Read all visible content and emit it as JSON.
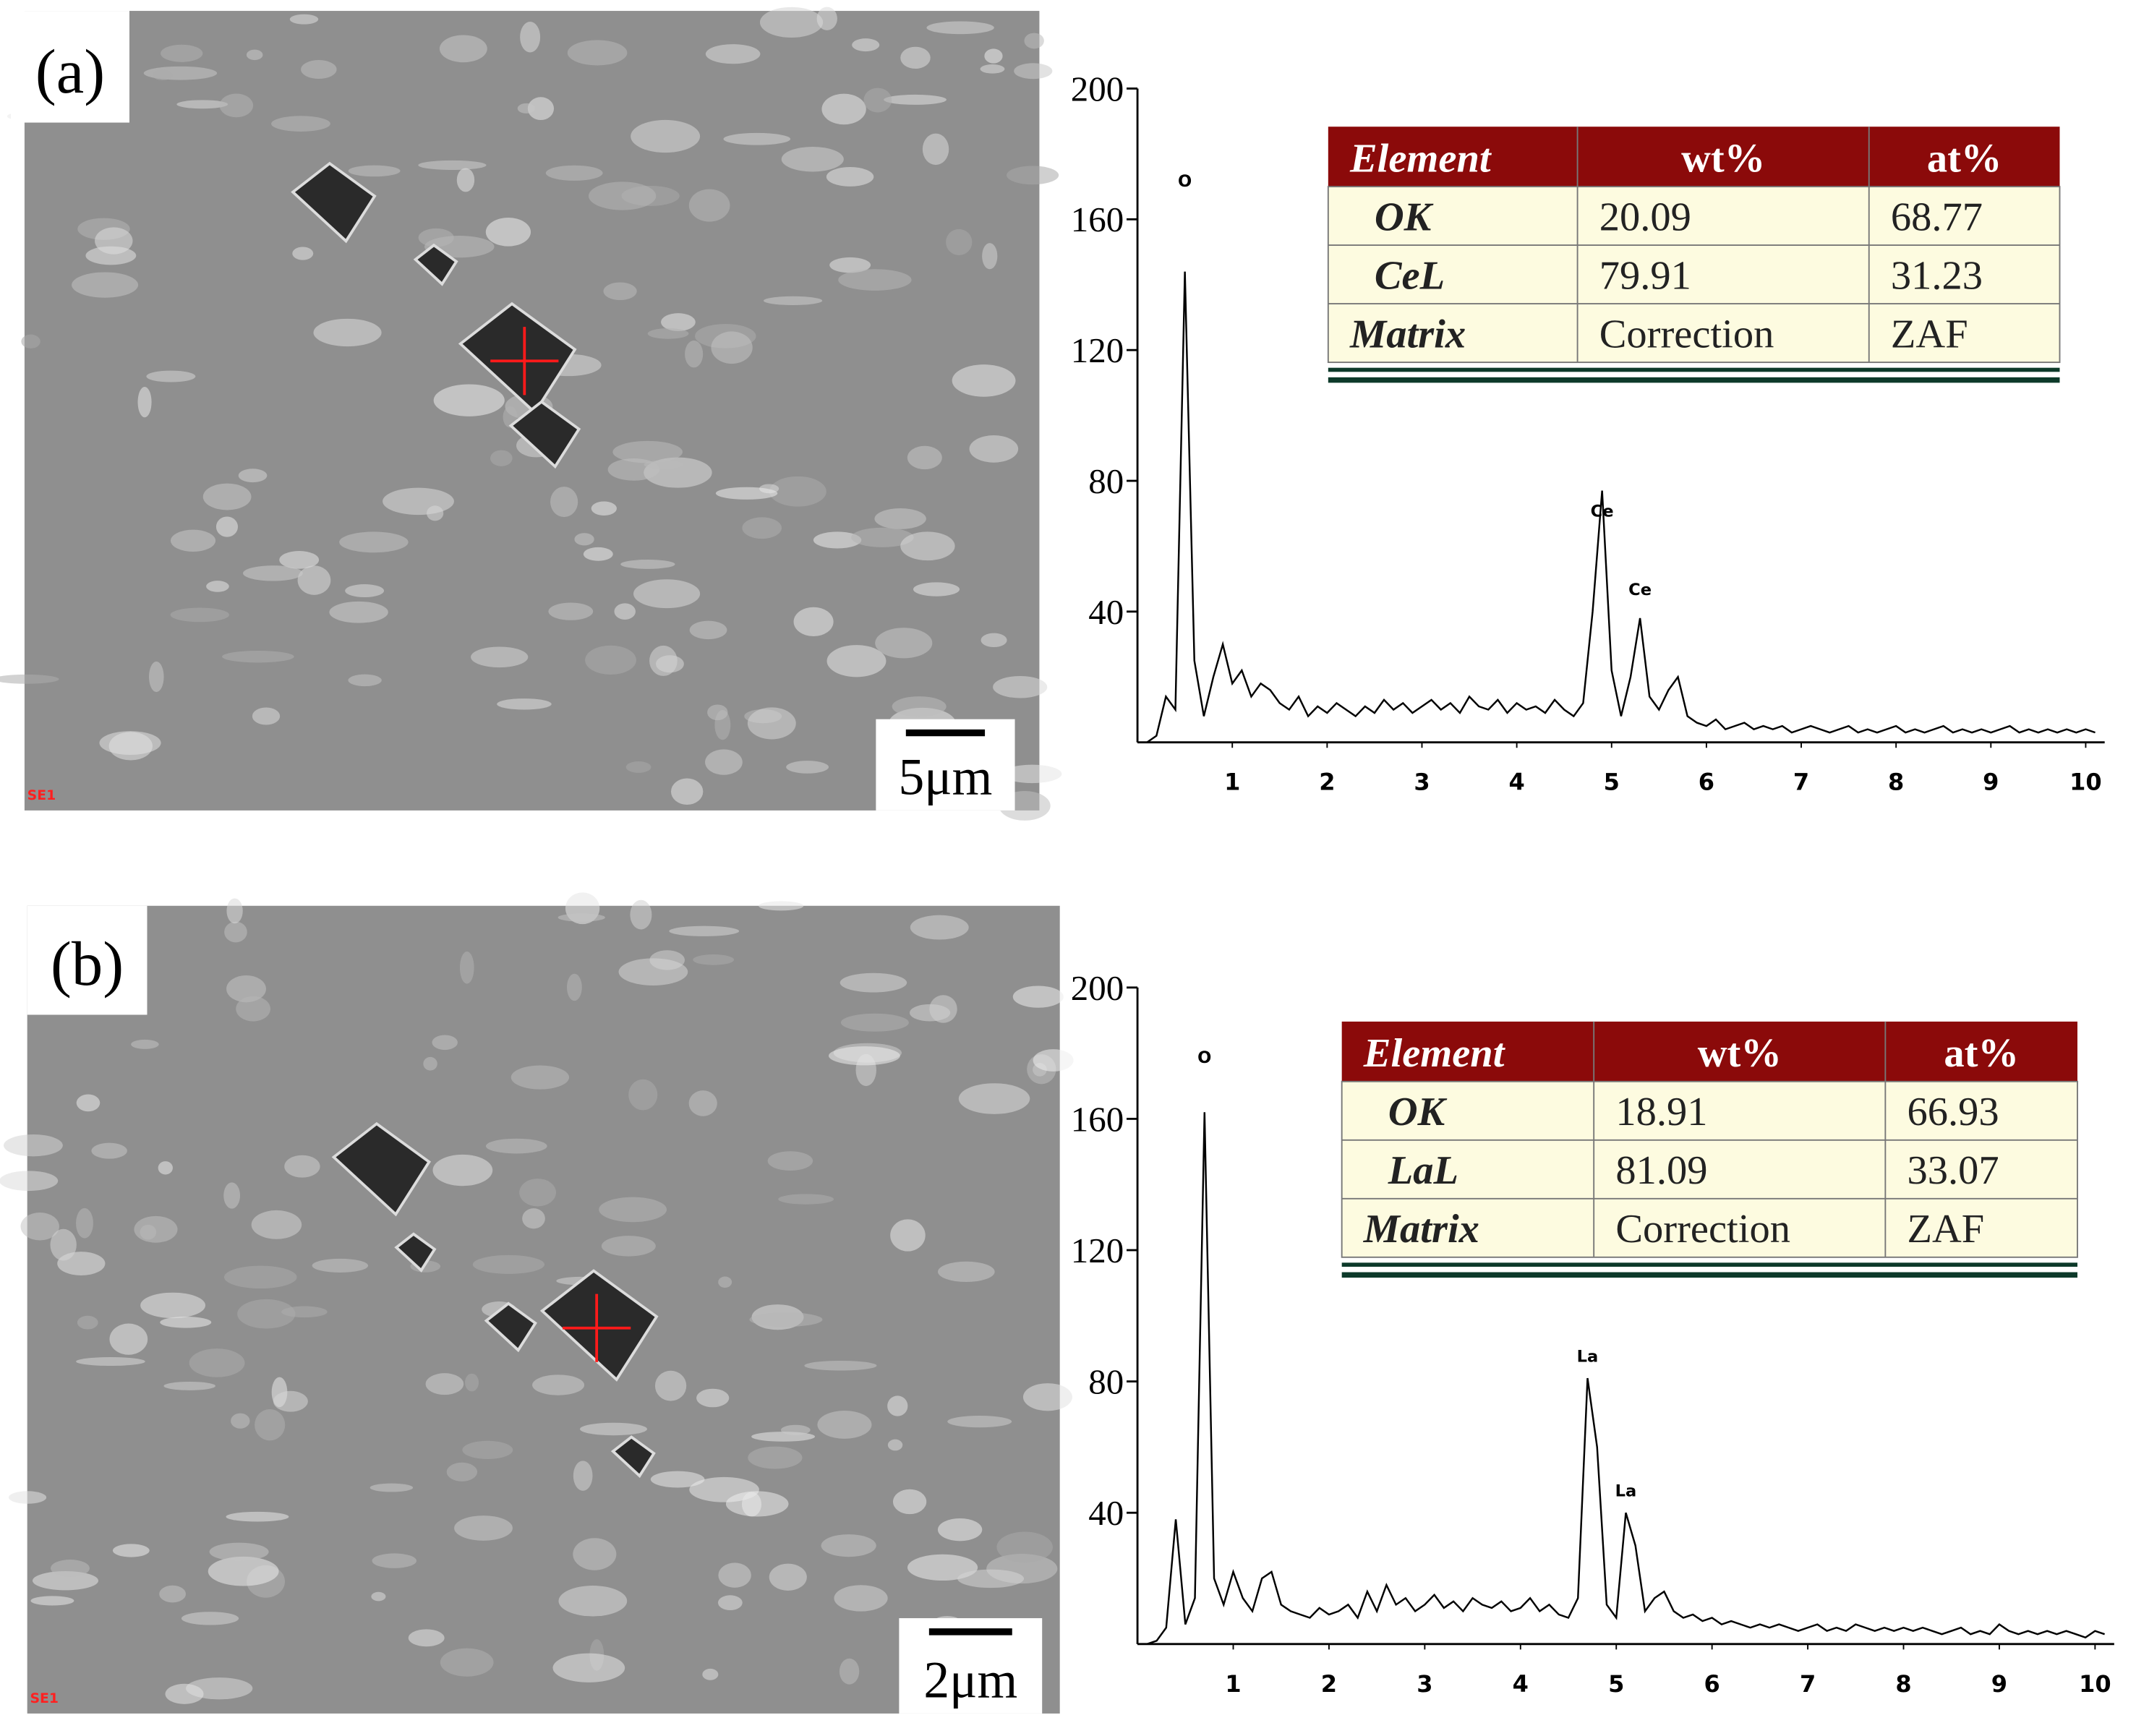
{
  "chart_data": [
    {
      "type": "line",
      "panel": "(a)",
      "image_label": "SE1",
      "scale_bar": "5μm",
      "color": "#000000",
      "x": [
        0.1,
        0.2,
        0.3,
        0.4,
        0.5,
        0.6,
        0.7,
        0.8,
        0.9,
        1.0,
        1.1,
        1.2,
        1.3,
        1.4,
        1.5,
        1.6,
        1.7,
        1.8,
        1.9,
        2.0,
        2.1,
        2.2,
        2.3,
        2.4,
        2.5,
        2.6,
        2.7,
        2.8,
        2.9,
        3.0,
        3.1,
        3.2,
        3.3,
        3.4,
        3.5,
        3.6,
        3.7,
        3.8,
        3.9,
        4.0,
        4.1,
        4.2,
        4.3,
        4.4,
        4.5,
        4.6,
        4.7,
        4.8,
        4.9,
        5.0,
        5.1,
        5.2,
        5.3,
        5.4,
        5.5,
        5.6,
        5.7,
        5.8,
        5.9,
        6.0,
        6.1,
        6.2,
        6.3,
        6.4,
        6.5,
        6.6,
        6.7,
        6.8,
        6.9,
        7.0,
        7.1,
        7.2,
        7.3,
        7.4,
        7.5,
        7.6,
        7.7,
        7.8,
        7.9,
        8.0,
        8.1,
        8.2,
        8.3,
        8.4,
        8.5,
        8.6,
        8.7,
        8.8,
        8.9,
        9.0,
        9.1,
        9.2,
        9.3,
        9.4,
        9.5,
        9.6,
        9.7,
        9.8,
        9.9,
        10.0,
        10.1
      ],
      "values": [
        0,
        2,
        14,
        10,
        144,
        25,
        8,
        20,
        30,
        18,
        22,
        14,
        18,
        16,
        12,
        10,
        14,
        8,
        11,
        9,
        12,
        10,
        8,
        11,
        9,
        13,
        10,
        12,
        9,
        11,
        13,
        10,
        12,
        9,
        14,
        11,
        10,
        13,
        9,
        12,
        10,
        11,
        9,
        13,
        10,
        8,
        12,
        40,
        77,
        22,
        8,
        20,
        38,
        14,
        10,
        16,
        20,
        8,
        6,
        5,
        7,
        4,
        5,
        6,
        4,
        5,
        4,
        5,
        3,
        4,
        5,
        4,
        3,
        4,
        5,
        3,
        4,
        3,
        4,
        5,
        3,
        4,
        3,
        4,
        5,
        3,
        4,
        3,
        4,
        3,
        4,
        5,
        3,
        4,
        3,
        4,
        3,
        4,
        3,
        4,
        3
      ],
      "xlim": [
        0,
        10.2
      ],
      "xticks": [
        1,
        2,
        3,
        4,
        5,
        6,
        7,
        8,
        9,
        10
      ],
      "ylim": [
        0,
        200
      ],
      "yticks": [
        40,
        80,
        120,
        160,
        200
      ],
      "annotations": [
        {
          "text": "O",
          "x": 0.5,
          "y": 170
        },
        {
          "text": "Ce",
          "x": 4.9,
          "y": 69
        },
        {
          "text": "Ce",
          "x": 5.3,
          "y": 45
        }
      ],
      "table": {
        "header": [
          "Element",
          "wt%",
          "at%"
        ],
        "rows": [
          [
            "OK",
            20.09,
            68.77
          ],
          [
            "CeL",
            79.91,
            31.23
          ],
          [
            "Matrix",
            "Correction",
            "ZAF"
          ]
        ]
      }
    },
    {
      "type": "line",
      "panel": "(b)",
      "image_label": "SE1",
      "scale_bar": "2μm",
      "color": "#000000",
      "x": [
        0.1,
        0.2,
        0.3,
        0.4,
        0.5,
        0.6,
        0.7,
        0.8,
        0.9,
        1.0,
        1.1,
        1.2,
        1.3,
        1.4,
        1.5,
        1.6,
        1.7,
        1.8,
        1.9,
        2.0,
        2.1,
        2.2,
        2.3,
        2.4,
        2.5,
        2.6,
        2.7,
        2.8,
        2.9,
        3.0,
        3.1,
        3.2,
        3.3,
        3.4,
        3.5,
        3.6,
        3.7,
        3.8,
        3.9,
        4.0,
        4.1,
        4.2,
        4.3,
        4.4,
        4.5,
        4.6,
        4.7,
        4.8,
        4.9,
        5.0,
        5.1,
        5.2,
        5.3,
        5.4,
        5.5,
        5.6,
        5.7,
        5.8,
        5.9,
        6.0,
        6.1,
        6.2,
        6.3,
        6.4,
        6.5,
        6.6,
        6.7,
        6.8,
        6.9,
        7.0,
        7.1,
        7.2,
        7.3,
        7.4,
        7.5,
        7.6,
        7.7,
        7.8,
        7.9,
        8.0,
        8.1,
        8.2,
        8.3,
        8.4,
        8.5,
        8.6,
        8.7,
        8.8,
        8.9,
        9.0,
        9.1,
        9.2,
        9.3,
        9.4,
        9.5,
        9.6,
        9.7,
        9.8,
        9.9,
        10.0,
        10.1
      ],
      "values": [
        0,
        1,
        5,
        38,
        6,
        14,
        162,
        20,
        12,
        22,
        14,
        10,
        20,
        22,
        12,
        10,
        9,
        8,
        11,
        9,
        10,
        12,
        8,
        16,
        10,
        18,
        12,
        14,
        10,
        12,
        15,
        11,
        13,
        10,
        14,
        12,
        11,
        13,
        10,
        11,
        14,
        10,
        12,
        9,
        8,
        14,
        81,
        60,
        12,
        8,
        40,
        30,
        10,
        14,
        16,
        10,
        8,
        9,
        7,
        8,
        6,
        7,
        6,
        5,
        6,
        5,
        6,
        5,
        4,
        5,
        6,
        4,
        5,
        4,
        6,
        5,
        4,
        5,
        4,
        5,
        4,
        5,
        4,
        3,
        4,
        5,
        3,
        4,
        3,
        6,
        4,
        3,
        4,
        3,
        4,
        3,
        4,
        3,
        2,
        4,
        3
      ],
      "xlim": [
        0,
        10.2
      ],
      "xticks": [
        1,
        2,
        3,
        4,
        5,
        6,
        7,
        8,
        9,
        10
      ],
      "ylim": [
        0,
        200
      ],
      "yticks": [
        40,
        80,
        120,
        160,
        200
      ],
      "annotations": [
        {
          "text": "O",
          "x": 0.7,
          "y": 177
        },
        {
          "text": "La",
          "x": 4.7,
          "y": 86
        },
        {
          "text": "La",
          "x": 5.1,
          "y": 45
        }
      ],
      "table": {
        "header": [
          "Element",
          "wt%",
          "at%"
        ],
        "rows": [
          [
            "OK",
            18.91,
            66.93
          ],
          [
            "LaL",
            81.09,
            33.07
          ],
          [
            "Matrix",
            "Correction",
            "ZAF"
          ]
        ]
      }
    }
  ]
}
